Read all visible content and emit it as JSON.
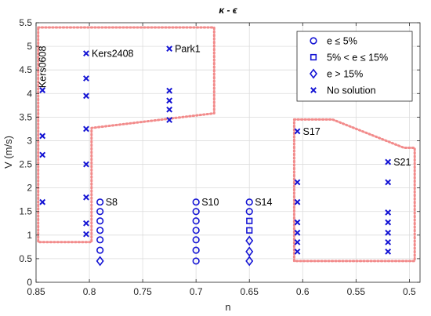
{
  "chart_data": {
    "type": "scatter",
    "title": "κ - ϵ",
    "xlabel": "n",
    "ylabel": "V (m/s)",
    "xlim": [
      0.85,
      0.49
    ],
    "ylim": [
      0,
      5.5
    ],
    "x_reversed": true,
    "xticks": [
      0.85,
      0.8,
      0.75,
      0.7,
      0.65,
      0.6,
      0.55,
      0.5
    ],
    "xtick_labels": [
      "0.85",
      "0.8",
      "0.75",
      "0.7",
      "0.65",
      "0.6",
      "0.55",
      "0.5"
    ],
    "yticks": [
      0,
      0.5,
      1,
      1.5,
      2,
      2.5,
      3,
      3.5,
      4,
      4.5,
      5,
      5.5
    ],
    "ytick_labels": [
      "0",
      "0.5",
      "1",
      "1.5",
      "2",
      "2.5",
      "3",
      "3.5",
      "4",
      "4.5",
      "5",
      "5.5"
    ],
    "grid": true,
    "legend_position": "top-right",
    "colors": {
      "marker": "#1414d4",
      "region": "#f28b8b",
      "grid": "#dcdcdc",
      "axis": "#262626"
    },
    "series": [
      {
        "name": "e ≤ 5%",
        "marker": "circle",
        "points": [
          [
            0.79,
            1.7
          ],
          [
            0.79,
            1.5
          ],
          [
            0.79,
            1.3
          ],
          [
            0.79,
            1.1
          ],
          [
            0.79,
            0.9
          ],
          [
            0.79,
            0.68
          ],
          [
            0.7,
            1.7
          ],
          [
            0.7,
            1.5
          ],
          [
            0.7,
            1.3
          ],
          [
            0.7,
            1.1
          ],
          [
            0.7,
            0.9
          ],
          [
            0.7,
            0.68
          ],
          [
            0.7,
            0.45
          ],
          [
            0.65,
            1.7
          ],
          [
            0.65,
            1.5
          ]
        ]
      },
      {
        "name": "5% < e ≤ 15%",
        "marker": "square",
        "points": [
          [
            0.65,
            1.3
          ],
          [
            0.65,
            1.1
          ]
        ]
      },
      {
        "name": "e > 15%",
        "marker": "diamond",
        "points": [
          [
            0.79,
            0.45
          ],
          [
            0.65,
            0.88
          ],
          [
            0.65,
            0.65
          ],
          [
            0.65,
            0.45
          ]
        ]
      },
      {
        "name": "No solution",
        "marker": "x",
        "points": [
          [
            0.844,
            4.07
          ],
          [
            0.844,
            3.1
          ],
          [
            0.844,
            2.7
          ],
          [
            0.844,
            1.7
          ],
          [
            0.803,
            4.85
          ],
          [
            0.803,
            4.32
          ],
          [
            0.803,
            3.95
          ],
          [
            0.803,
            3.25
          ],
          [
            0.803,
            2.5
          ],
          [
            0.803,
            1.8
          ],
          [
            0.803,
            1.25
          ],
          [
            0.803,
            1.02
          ],
          [
            0.725,
            4.95
          ],
          [
            0.725,
            4.06
          ],
          [
            0.725,
            3.85
          ],
          [
            0.725,
            3.66
          ],
          [
            0.725,
            3.44
          ],
          [
            0.605,
            3.2
          ],
          [
            0.605,
            2.12
          ],
          [
            0.605,
            1.7
          ],
          [
            0.605,
            1.27
          ],
          [
            0.605,
            1.05
          ],
          [
            0.605,
            0.85
          ],
          [
            0.605,
            0.65
          ],
          [
            0.52,
            2.55
          ],
          [
            0.52,
            2.12
          ],
          [
            0.52,
            1.48
          ],
          [
            0.52,
            1.27
          ],
          [
            0.52,
            1.05
          ],
          [
            0.52,
            0.85
          ],
          [
            0.52,
            0.65
          ]
        ]
      }
    ],
    "annotations": [
      {
        "text": "Kers0608",
        "x": 0.844,
        "y": 4.07,
        "rotated": true
      },
      {
        "text": "Kers2408",
        "x": 0.803,
        "y": 4.85
      },
      {
        "text": "Park1",
        "x": 0.725,
        "y": 4.95
      },
      {
        "text": "S8",
        "x": 0.79,
        "y": 1.7
      },
      {
        "text": "S10",
        "x": 0.7,
        "y": 1.7
      },
      {
        "text": "S14",
        "x": 0.65,
        "y": 1.7
      },
      {
        "text": "S17",
        "x": 0.605,
        "y": 3.2
      },
      {
        "text": "S21",
        "x": 0.52,
        "y": 2.55
      }
    ],
    "regions": [
      {
        "style": "dotted",
        "points": [
          [
            0.848,
            5.4
          ],
          [
            0.683,
            5.4
          ],
          [
            0.683,
            3.58
          ],
          [
            0.798,
            3.27
          ],
          [
            0.798,
            0.85
          ],
          [
            0.848,
            0.85
          ]
        ]
      },
      {
        "style": "dotted",
        "points": [
          [
            0.608,
            3.45
          ],
          [
            0.572,
            3.45
          ],
          [
            0.505,
            2.85
          ],
          [
            0.495,
            2.85
          ],
          [
            0.495,
            0.45
          ],
          [
            0.608,
            0.45
          ]
        ]
      }
    ]
  }
}
